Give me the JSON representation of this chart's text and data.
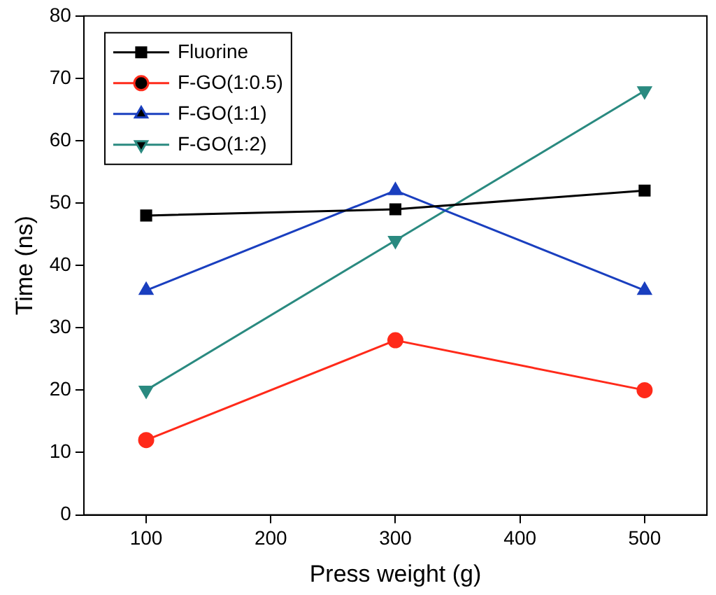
{
  "chart_data": {
    "type": "line",
    "xlabel": "Press weight (g)",
    "ylabel": "Time (ns)",
    "x": [
      100,
      300,
      500
    ],
    "xlim": [
      50,
      550
    ],
    "xticks": [
      100,
      200,
      300,
      400,
      500
    ],
    "ylim": [
      0,
      80
    ],
    "yticks": [
      0,
      10,
      20,
      30,
      40,
      50,
      60,
      70,
      80
    ],
    "grid": false,
    "legend": "top left",
    "line_style": "solid",
    "series": [
      {
        "name": "Fluorine",
        "color": "#000000",
        "marker": "square",
        "values": [
          48,
          49,
          52
        ]
      },
      {
        "name": "F-GO(1:0.5)",
        "color": "#ff2a1a",
        "marker": "circle",
        "values": [
          12,
          28,
          20
        ]
      },
      {
        "name": "F-GO(1:1)",
        "color": "#1a3fbf",
        "marker": "triangle",
        "values": [
          36,
          52,
          36
        ]
      },
      {
        "name": "F-GO(1:2)",
        "color": "#2a8a80",
        "marker": "triangle_down",
        "values": [
          20,
          44,
          68
        ]
      }
    ]
  }
}
